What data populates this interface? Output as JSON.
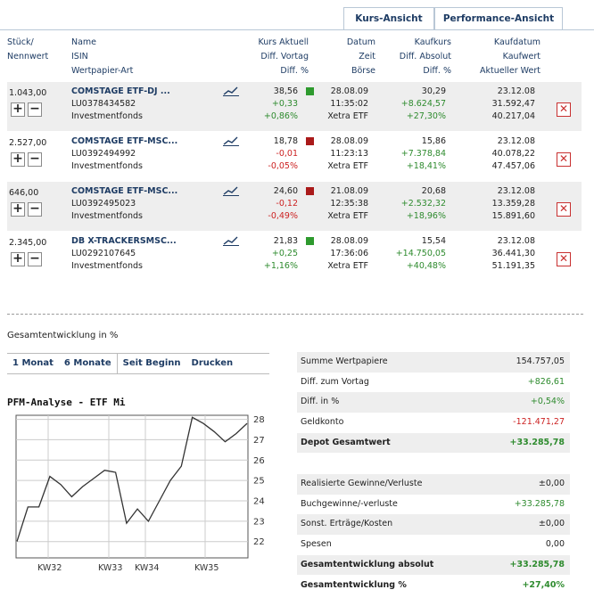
{
  "tabs": [
    "Kurs-Ansicht",
    "Performance-Ansicht"
  ],
  "headers": {
    "col1": [
      "Stück/",
      "Nennwert"
    ],
    "col2": [
      "Name",
      "ISIN",
      "Wertpapier-Art"
    ],
    "col3": [
      "Kurs Aktuell",
      "Diff. Vortag",
      "Diff. %"
    ],
    "col4": [
      "Datum",
      "Zeit",
      "Börse"
    ],
    "col5": [
      "Kaufkurs",
      "Diff. Absolut",
      "Diff. %"
    ],
    "col6": [
      "Kaufdatum",
      "Kaufwert",
      "Aktueller Wert"
    ]
  },
  "rows": [
    {
      "qty": "1.043,00",
      "name": "COMSTAGE ETF-DJ ...",
      "isin": "LU0378434582",
      "type": "Investmentfonds",
      "price": "38,56",
      "diff": "+0,33",
      "diffpct": "+0,86%",
      "trend": "up",
      "date": "28.08.09",
      "time": "11:35:02",
      "exchange": "Xetra ETF",
      "buyprice": "30,29",
      "absdiff": "+8.624,57",
      "abspct": "+27,30%",
      "buydate": "23.12.08",
      "buyvalue": "31.592,47",
      "curvalue": "40.217,04"
    },
    {
      "qty": "2.527,00",
      "name": "COMSTAGE ETF-MSC...",
      "isin": "LU0392494992",
      "type": "Investmentfonds",
      "price": "18,78",
      "diff": "-0,01",
      "diffpct": "-0,05%",
      "trend": "down",
      "date": "28.08.09",
      "time": "11:23:13",
      "exchange": "Xetra ETF",
      "buyprice": "15,86",
      "absdiff": "+7.378,84",
      "abspct": "+18,41%",
      "buydate": "23.12.08",
      "buyvalue": "40.078,22",
      "curvalue": "47.457,06"
    },
    {
      "qty": "646,00",
      "name": "COMSTAGE ETF-MSC...",
      "isin": "LU0392495023",
      "type": "Investmentfonds",
      "price": "24,60",
      "diff": "-0,12",
      "diffpct": "-0,49%",
      "trend": "down",
      "date": "21.08.09",
      "time": "12:35:38",
      "exchange": "Xetra ETF",
      "buyprice": "20,68",
      "absdiff": "+2.532,32",
      "abspct": "+18,96%",
      "buydate": "23.12.08",
      "buyvalue": "13.359,28",
      "curvalue": "15.891,60"
    },
    {
      "qty": "2.345,00",
      "name": "DB X-TRACKERSMSC...",
      "isin": "LU0292107645",
      "type": "Investmentfonds",
      "price": "21,83",
      "diff": "+0,25",
      "diffpct": "+1,16%",
      "trend": "up",
      "date": "28.08.09",
      "time": "17:36:06",
      "exchange": "Xetra ETF",
      "buyprice": "15,54",
      "absdiff": "+14.750,05",
      "abspct": "+40,48%",
      "buydate": "23.12.08",
      "buyvalue": "36.441,30",
      "curvalue": "51.191,35"
    }
  ],
  "section_title": "Gesamtentwicklung in %",
  "nav": [
    "1 Monat",
    "6 Monate",
    "Seit Beginn",
    "Drucken"
  ],
  "chart_title": "PFM-Analyse - ETF Mi",
  "summary1": [
    {
      "label": "Summe Wertpapiere",
      "value": "154.757,05",
      "color": "#222222",
      "bold": false
    },
    {
      "label": "Diff. zum Vortag",
      "value": "+826,61",
      "color": "#2e8b2e",
      "bold": false
    },
    {
      "label": "Diff. in %",
      "value": "+0,54%",
      "color": "#2e8b2e",
      "bold": false
    },
    {
      "label": "Geldkonto",
      "value": "-121.471,27",
      "color": "#cc2222",
      "bold": false
    },
    {
      "label": "Depot Gesamtwert",
      "value": "+33.285,78",
      "color": "#2e8b2e",
      "bold": true
    }
  ],
  "summary2": [
    {
      "label": "Realisierte Gewinne/Verluste",
      "value": "±0,00",
      "color": "#222222",
      "bold": false
    },
    {
      "label": "Buchgewinne/-verluste",
      "value": "+33.285,78",
      "color": "#2e8b2e",
      "bold": false
    },
    {
      "label": "Sonst. Erträge/Kosten",
      "value": "±0,00",
      "color": "#222222",
      "bold": false
    },
    {
      "label": "Spesen",
      "value": "0,00",
      "color": "#222222",
      "bold": false
    },
    {
      "label": "Gesamtentwicklung absolut",
      "value": "+33.285,78",
      "color": "#2e8b2e",
      "bold": true
    },
    {
      "label": "Gesamtentwicklung %",
      "value": "+27,40%",
      "color": "#2e8b2e",
      "bold": true
    }
  ],
  "chart_data": {
    "type": "line",
    "title": "PFM-Analyse - ETF Mi",
    "xticks": [
      "KW32",
      "KW33",
      "KW34",
      "KW35"
    ],
    "yticks": [
      22,
      23,
      24,
      25,
      26,
      27,
      28
    ],
    "ylim": [
      21.2,
      28.2
    ],
    "values": [
      22.0,
      23.7,
      23.7,
      25.2,
      24.8,
      24.2,
      24.7,
      25.1,
      25.5,
      25.4,
      22.9,
      23.6,
      23.0,
      24.0,
      25.0,
      25.7,
      28.1,
      27.8,
      27.4,
      26.9,
      27.3,
      27.8
    ],
    "grid": true
  }
}
